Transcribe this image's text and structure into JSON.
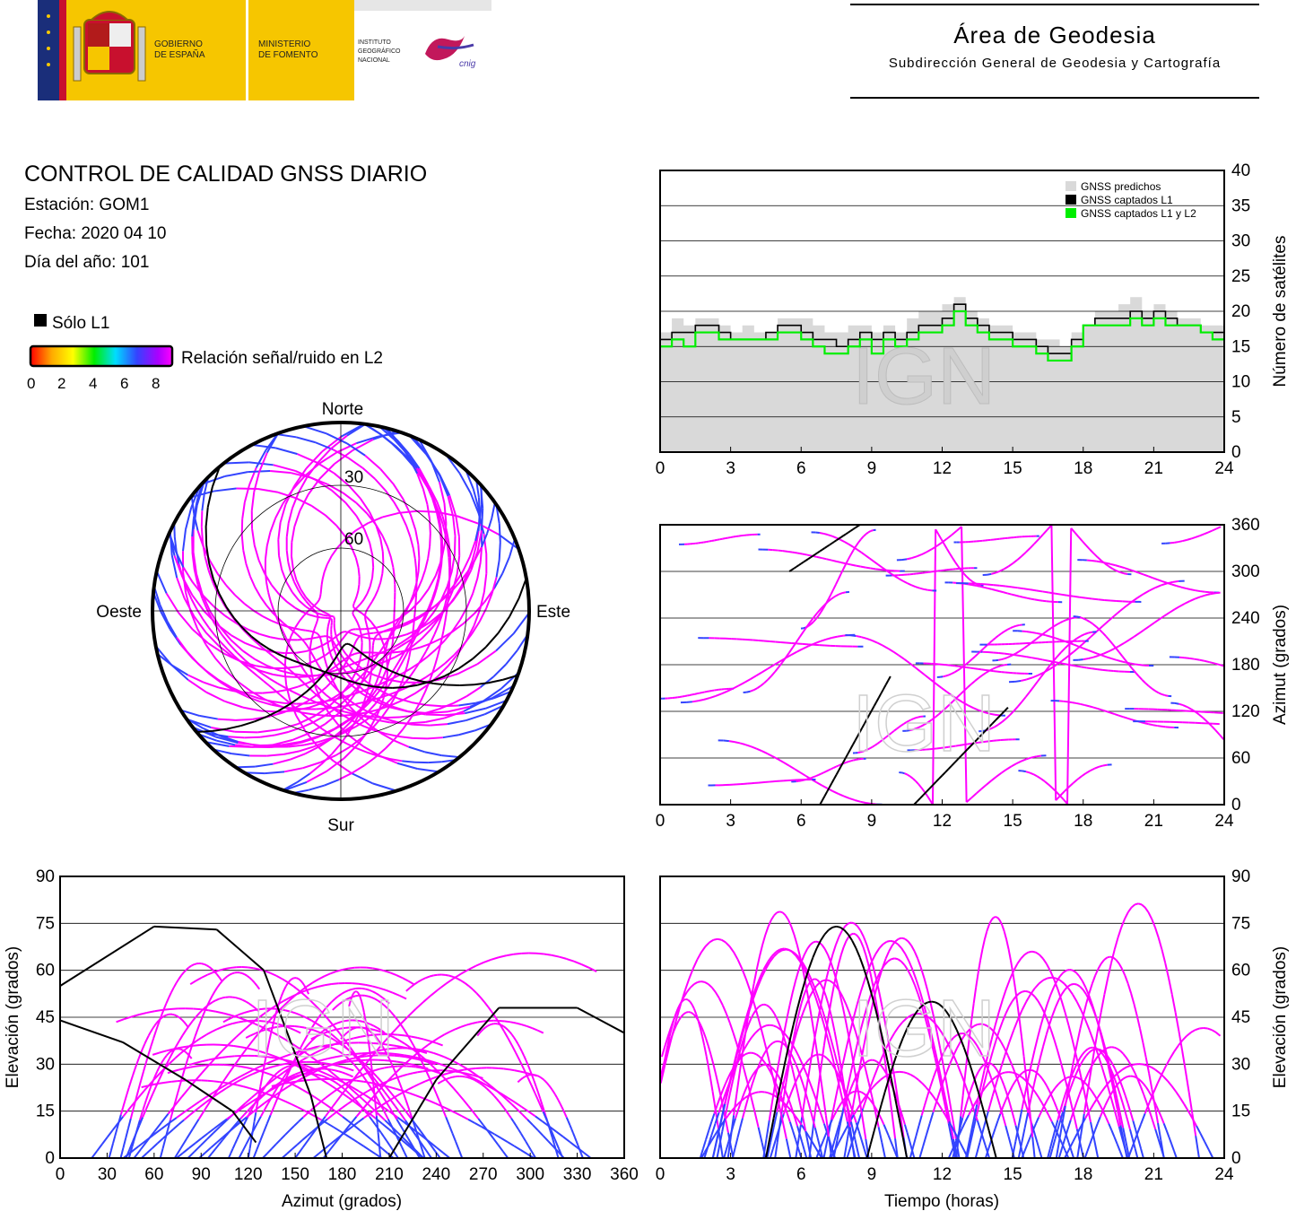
{
  "header": {
    "gov_line1": "GOBIERNO",
    "gov_line2": "DE ESPAÑA",
    "min_line1": "MINISTERIO",
    "min_line2": "DE FOMENTO",
    "inst_line1": "INSTITUTO",
    "inst_line2": "GEOGRÁFICO",
    "inst_line3": "NACIONAL",
    "cnig": "cnig",
    "area_title": "Área de Geodesia",
    "area_subtitle": "Subdirección General de Geodesia y Cartografía"
  },
  "info": {
    "title": "CONTROL DE CALIDAD GNSS DIARIO",
    "station": "Estación: GOM1",
    "date": "Fecha: 2020 04 10",
    "doy": "Día del año: 101"
  },
  "legend": {
    "solo_l1": "Sólo L1",
    "snr_label": "Relación señal/ruido en L2",
    "snr_ticks": [
      "0",
      "2",
      "4",
      "6",
      "8"
    ]
  },
  "watermark": "IGN",
  "colors": {
    "l1_only": "#000000",
    "snr_high": "#ff00ff",
    "snr_mid": "#3344ff",
    "predicted": "#d9d9d9",
    "l1l2": "#00ee00"
  },
  "chart_data": [
    {
      "type": "polar",
      "id": "skyplot",
      "cardinals": {
        "n": "Norte",
        "s": "Sur",
        "e": "Este",
        "w": "Oeste"
      },
      "ring_labels": [
        "30",
        "60"
      ],
      "rings_elevation": [
        30,
        60
      ]
    },
    {
      "type": "area",
      "id": "satellites",
      "ylabel": "Número de satélites",
      "ylim": [
        0,
        40
      ],
      "yticks": [
        "0",
        "5",
        "10",
        "15",
        "20",
        "25",
        "30",
        "35",
        "40"
      ],
      "xlim": [
        0,
        24
      ],
      "xticks": [
        "0",
        "3",
        "6",
        "9",
        "12",
        "15",
        "18",
        "21",
        "24"
      ],
      "legend_entries": [
        "GNSS predichos",
        "GNSS captados L1",
        "GNSS captados L1 y L2"
      ],
      "series": [
        {
          "name": "GNSS predichos",
          "x": [
            0,
            0.5,
            1,
            1.5,
            2,
            2.5,
            3,
            3.5,
            4,
            4.5,
            5,
            5.5,
            6,
            6.5,
            7,
            7.5,
            8,
            8.5,
            9,
            9.5,
            10,
            10.5,
            11,
            11.5,
            12,
            12.5,
            13,
            13.5,
            14,
            14.5,
            15,
            15.5,
            16,
            16.5,
            17,
            17.5,
            18,
            18.5,
            19,
            19.5,
            20,
            20.5,
            21,
            21.5,
            22,
            22.5,
            23,
            23.5,
            24
          ],
          "values": [
            17,
            19,
            18,
            19,
            19,
            18,
            17,
            18,
            17,
            17,
            19,
            19,
            19,
            18,
            17,
            17,
            18,
            18,
            17,
            18,
            17,
            19,
            20,
            20,
            21,
            22,
            20,
            19,
            18,
            18,
            17,
            17,
            16,
            16,
            15,
            17,
            18,
            20,
            20,
            21,
            22,
            20,
            21,
            20,
            19,
            19,
            18,
            18,
            17
          ]
        },
        {
          "name": "GNSS captados L1",
          "x": [
            0,
            0.5,
            1,
            1.5,
            2,
            2.5,
            3,
            3.5,
            4,
            4.5,
            5,
            5.5,
            6,
            6.5,
            7,
            7.5,
            8,
            8.5,
            9,
            9.5,
            10,
            10.5,
            11,
            11.5,
            12,
            12.5,
            13,
            13.5,
            14,
            14.5,
            15,
            15.5,
            16,
            16.5,
            17,
            17.5,
            18,
            18.5,
            19,
            19.5,
            20,
            20.5,
            21,
            21.5,
            22,
            22.5,
            23,
            23.5,
            24
          ],
          "values": [
            16,
            17,
            17,
            18,
            18,
            17,
            16,
            16,
            16,
            17,
            18,
            18,
            17,
            16,
            16,
            15,
            16,
            17,
            16,
            17,
            16,
            17,
            18,
            18,
            19,
            21,
            19,
            18,
            17,
            17,
            16,
            16,
            15,
            14,
            14,
            16,
            18,
            19,
            19,
            19,
            20,
            19,
            20,
            19,
            18,
            18,
            17,
            17,
            16
          ]
        },
        {
          "name": "GNSS captados L1 y L2",
          "x": [
            0,
            0.5,
            1,
            1.5,
            2,
            2.5,
            3,
            3.5,
            4,
            4.5,
            5,
            5.5,
            6,
            6.5,
            7,
            7.5,
            8,
            8.5,
            9,
            9.5,
            10,
            10.5,
            11,
            11.5,
            12,
            12.5,
            13,
            13.5,
            14,
            14.5,
            15,
            15.5,
            16,
            16.5,
            17,
            17.5,
            18,
            18.5,
            19,
            19.5,
            20,
            20.5,
            21,
            21.5,
            22,
            22.5,
            23,
            23.5,
            24
          ],
          "values": [
            15,
            16,
            15,
            17,
            17,
            16,
            16,
            16,
            16,
            16,
            17,
            17,
            16,
            15,
            14,
            14,
            15,
            16,
            14,
            16,
            15,
            16,
            17,
            17,
            18,
            20,
            18,
            17,
            16,
            16,
            15,
            15,
            14,
            13,
            13,
            15,
            18,
            18,
            18,
            18,
            19,
            18,
            19,
            18,
            18,
            18,
            17,
            16,
            16
          ]
        }
      ]
    },
    {
      "type": "scatter",
      "id": "azimuth_time",
      "ylabel": "Azimut (grados)",
      "ylim": [
        0,
        360
      ],
      "yticks": [
        "0",
        "60",
        "120",
        "180",
        "240",
        "300",
        "360"
      ],
      "xlim": [
        0,
        24
      ],
      "xticks": [
        "0",
        "3",
        "6",
        "9",
        "12",
        "15",
        "18",
        "21",
        "24"
      ]
    },
    {
      "type": "scatter",
      "id": "elevation_azimuth",
      "xlabel": "Azimut (grados)",
      "ylabel": "Elevación (grados)",
      "xlim": [
        0,
        360
      ],
      "ylim": [
        0,
        90
      ],
      "xticks": [
        "0",
        "30",
        "60",
        "90",
        "120",
        "150",
        "180",
        "210",
        "240",
        "270",
        "300",
        "330",
        "360"
      ],
      "yticks": [
        "0",
        "15",
        "30",
        "45",
        "60",
        "75",
        "90"
      ]
    },
    {
      "type": "scatter",
      "id": "elevation_time",
      "xlabel": "Tiempo (horas)",
      "ylabel": "Elevación (grados)",
      "xlim": [
        0,
        24
      ],
      "ylim": [
        0,
        90
      ],
      "xticks": [
        "0",
        "3",
        "6",
        "9",
        "12",
        "15",
        "18",
        "21",
        "24"
      ],
      "yticks": [
        "0",
        "15",
        "30",
        "45",
        "60",
        "75",
        "90"
      ]
    }
  ]
}
